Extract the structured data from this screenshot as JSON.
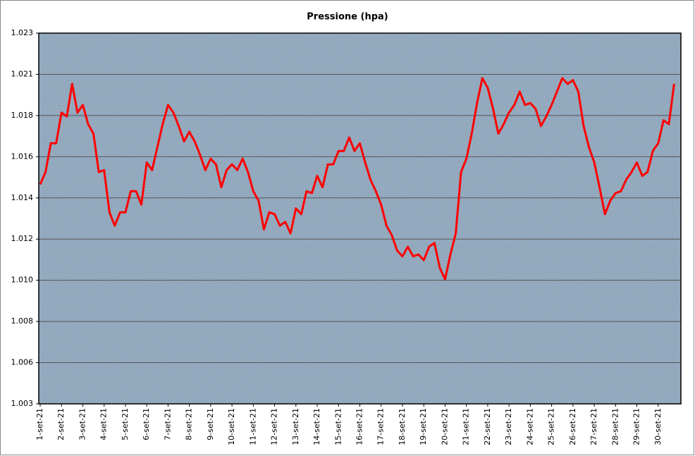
{
  "chart_data": {
    "type": "line",
    "title": "Pressione (hpa)",
    "categories": [
      "1-set-21",
      null,
      null,
      null,
      "2-set-21",
      null,
      null,
      null,
      "3-set-21",
      null,
      null,
      null,
      "4-set-21",
      null,
      null,
      null,
      "5-set-21",
      null,
      null,
      null,
      "6-set-21",
      null,
      null,
      null,
      "7-set-21",
      null,
      null,
      null,
      "8-set-21",
      null,
      null,
      null,
      "9-set-21",
      null,
      null,
      null,
      "10-set-21",
      null,
      null,
      null,
      "11-set-21",
      null,
      null,
      null,
      "12-set-21",
      null,
      null,
      null,
      "13-set-21",
      null,
      null,
      null,
      "14-set-21",
      null,
      null,
      null,
      "15-set-21",
      null,
      null,
      null,
      "16-set-21",
      null,
      null,
      null,
      "17-set-21",
      null,
      null,
      null,
      "18-set-21",
      null,
      null,
      null,
      "19-set-21",
      null,
      null,
      null,
      "20-set-21",
      null,
      null,
      null,
      "21-set-21",
      null,
      null,
      null,
      "22-set-21",
      null,
      null,
      null,
      "23-set-21",
      null,
      null,
      null,
      "24-set-21",
      null,
      null,
      null,
      "25-set-21",
      null,
      null,
      null,
      "26-set-21",
      null,
      null,
      null,
      "27-set-21",
      null,
      null,
      null,
      "28-set-21",
      null,
      null,
      null,
      "29-set-21",
      null,
      null,
      null,
      "30-set-21",
      null,
      null,
      null
    ],
    "series": [
      {
        "name": "Pressione",
        "color": "#ff0000",
        "values": [
          1014.85,
          1015.5,
          1017.0,
          1017.0,
          1018.6,
          1018.4,
          1020.1,
          1018.6,
          1019.0,
          1018.0,
          1017.5,
          1015.5,
          1015.6,
          1013.4,
          1012.7,
          1013.4,
          1013.4,
          1014.5,
          1014.5,
          1013.8,
          1016.0,
          1015.6,
          1016.8,
          1018.0,
          1019.0,
          1018.6,
          1017.9,
          1017.1,
          1017.6,
          1017.1,
          1016.4,
          1015.6,
          1016.2,
          1015.9,
          1014.7,
          1015.6,
          1015.9,
          1015.6,
          1016.2,
          1015.5,
          1014.5,
          1014.0,
          1012.5,
          1013.4,
          1013.3,
          1012.7,
          1012.9,
          1012.3,
          1013.6,
          1013.3,
          1014.5,
          1014.4,
          1015.3,
          1014.7,
          1015.9,
          1015.9,
          1016.6,
          1016.6,
          1017.3,
          1016.6,
          1017.0,
          1016.0,
          1015.1,
          1014.5,
          1013.8,
          1012.7,
          1012.2,
          1011.4,
          1011.1,
          1011.6,
          1011.1,
          1011.2,
          1010.9,
          1011.6,
          1011.8,
          1010.5,
          1009.9,
          1011.2,
          1012.3,
          1015.5,
          1016.2,
          1017.5,
          1019.1,
          1020.4,
          1019.9,
          1018.8,
          1017.5,
          1018.0,
          1018.6,
          1019.0,
          1019.7,
          1019.0,
          1019.1,
          1018.8,
          1017.9,
          1018.4,
          1019.0,
          1019.7,
          1020.4,
          1020.1,
          1020.3,
          1019.7,
          1017.9,
          1016.8,
          1016.0,
          1014.7,
          1013.3,
          1014.0,
          1014.4,
          1014.5,
          1015.1,
          1015.5,
          1016.0,
          1015.3,
          1015.5,
          1016.6,
          1017.0,
          1018.2,
          1018.0,
          1020.1
        ]
      }
    ],
    "ylim": [
      1003.4,
      1022.75
    ],
    "yticks": [
      {
        "value": 1003.4,
        "label": "1.003"
      },
      {
        "value": 1005.55,
        "label": "1.006"
      },
      {
        "value": 1007.7,
        "label": "1.008"
      },
      {
        "value": 1009.85,
        "label": "1.010"
      },
      {
        "value": 1012.0,
        "label": "1.012"
      },
      {
        "value": 1014.15,
        "label": "1.014"
      },
      {
        "value": 1016.3,
        "label": "1.016"
      },
      {
        "value": 1018.45,
        "label": "1.018"
      },
      {
        "value": 1020.6,
        "label": "1.021"
      },
      {
        "value": 1022.75,
        "label": "1.023"
      }
    ],
    "grid": true
  }
}
